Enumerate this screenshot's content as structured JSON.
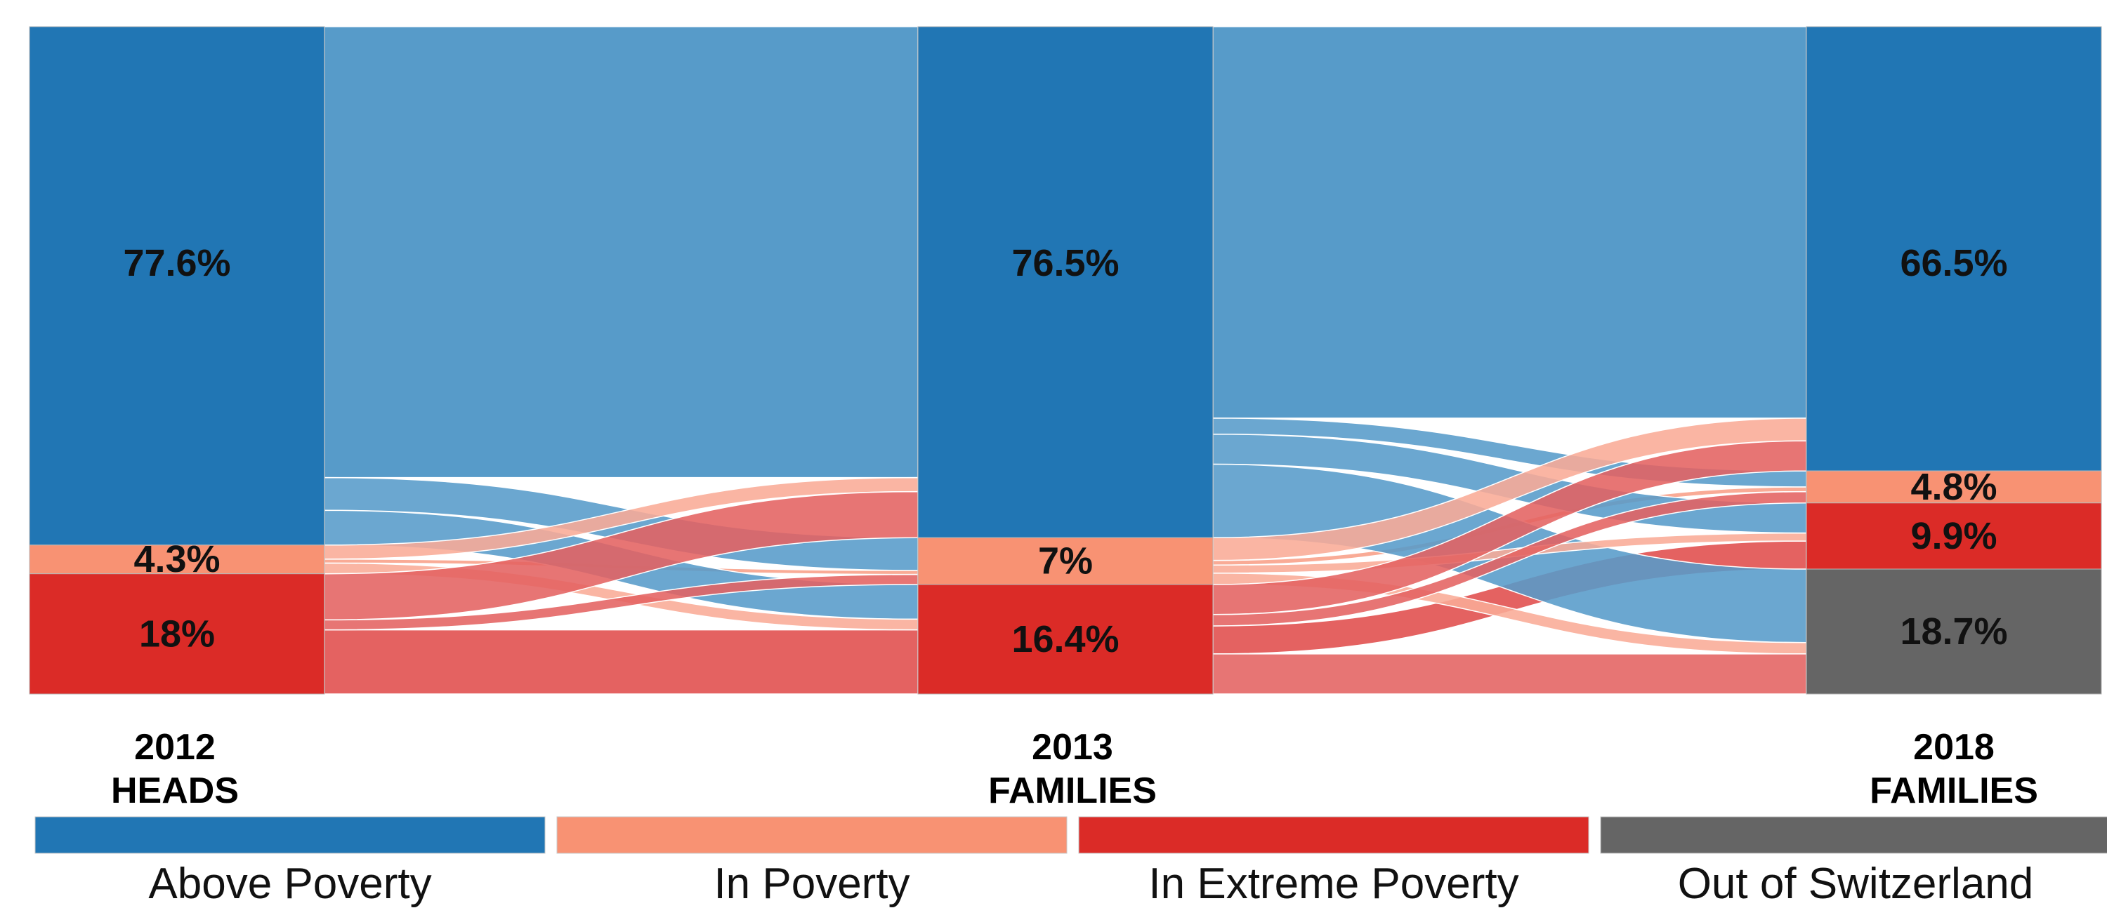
{
  "chart_data": {
    "type": "sankey",
    "title": "",
    "stages": [
      {
        "label_lines": [
          "2012",
          "HEADS"
        ],
        "nodes": [
          {
            "category": "above",
            "value": 77.6,
            "label": "77.6%"
          },
          {
            "category": "poverty",
            "value": 4.3,
            "label": "4.3%"
          },
          {
            "category": "extreme",
            "value": 18,
            "label": "18%"
          }
        ]
      },
      {
        "label_lines": [
          "2013",
          "FAMILIES"
        ],
        "nodes": [
          {
            "category": "above",
            "value": 76.5,
            "label": "76.5%"
          },
          {
            "category": "poverty",
            "value": 7,
            "label": "7%"
          },
          {
            "category": "extreme",
            "value": 16.4,
            "label": "16.4%"
          }
        ]
      },
      {
        "label_lines": [
          "2018",
          "FAMILIES"
        ],
        "nodes": [
          {
            "category": "above",
            "value": 66.5,
            "label": "66.5%"
          },
          {
            "category": "poverty",
            "value": 4.8,
            "label": "4.8%"
          },
          {
            "category": "extreme",
            "value": 9.9,
            "label": "9.9%"
          },
          {
            "category": "out",
            "value": 18.7,
            "label": "18.7%"
          }
        ]
      }
    ],
    "flows": [
      {
        "from_stage": 0,
        "from": "above",
        "to": "above",
        "value": 67.5
      },
      {
        "from_stage": 0,
        "from": "above",
        "to": "poverty",
        "value": 4.9
      },
      {
        "from_stage": 0,
        "from": "above",
        "to": "extreme",
        "value": 5.2
      },
      {
        "from_stage": 0,
        "from": "poverty",
        "to": "above",
        "value": 2.1
      },
      {
        "from_stage": 0,
        "from": "poverty",
        "to": "poverty",
        "value": 0.6
      },
      {
        "from_stage": 0,
        "from": "poverty",
        "to": "extreme",
        "value": 1.6
      },
      {
        "from_stage": 0,
        "from": "extreme",
        "to": "above",
        "value": 6.9
      },
      {
        "from_stage": 0,
        "from": "extreme",
        "to": "poverty",
        "value": 1.5
      },
      {
        "from_stage": 0,
        "from": "extreme",
        "to": "extreme",
        "value": 9.6
      },
      {
        "from_stage": 1,
        "from": "above",
        "to": "above",
        "value": 58.6
      },
      {
        "from_stage": 1,
        "from": "above",
        "to": "poverty",
        "value": 2.4
      },
      {
        "from_stage": 1,
        "from": "above",
        "to": "extreme",
        "value": 4.5
      },
      {
        "from_stage": 1,
        "from": "above",
        "to": "out",
        "value": 11.0
      },
      {
        "from_stage": 1,
        "from": "poverty",
        "to": "above",
        "value": 3.4
      },
      {
        "from_stage": 1,
        "from": "poverty",
        "to": "poverty",
        "value": 0.7
      },
      {
        "from_stage": 1,
        "from": "poverty",
        "to": "extreme",
        "value": 1.2
      },
      {
        "from_stage": 1,
        "from": "poverty",
        "to": "out",
        "value": 1.7
      },
      {
        "from_stage": 1,
        "from": "extreme",
        "to": "above",
        "value": 4.5
      },
      {
        "from_stage": 1,
        "from": "extreme",
        "to": "poverty",
        "value": 1.7
      },
      {
        "from_stage": 1,
        "from": "extreme",
        "to": "extreme",
        "value": 4.2
      },
      {
        "from_stage": 1,
        "from": "extreme",
        "to": "out",
        "value": 6.0
      }
    ],
    "legend": [
      {
        "category": "above",
        "label": "Above Poverty",
        "color": "#2176b4"
      },
      {
        "category": "poverty",
        "label": "In Poverty",
        "color": "#f89273"
      },
      {
        "category": "extreme",
        "label": "In Extreme Poverty",
        "color": "#db2b27"
      },
      {
        "category": "out",
        "label": "Out of Switzerland",
        "color": "#656565"
      }
    ],
    "flow_colors": {
      "above": "#579bc9",
      "poverty": "#f9ab96",
      "extreme": "#e46261"
    },
    "legend_placement": "bottom",
    "grid": false
  }
}
